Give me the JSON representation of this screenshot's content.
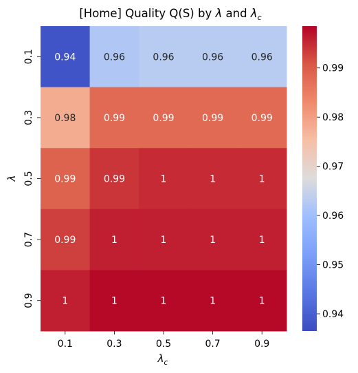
{
  "chart_data": {
    "type": "heatmap",
    "title_main": "[Home] Quality Q(S) by ",
    "title_sym1": "λ",
    "title_and": " and ",
    "title_sym2": "λ",
    "title_sym2_sub": "c",
    "xlabel": "λ",
    "xlabel_sub": "c",
    "ylabel": "λ",
    "x_categories": [
      "0.1",
      "0.3",
      "0.5",
      "0.7",
      "0.9"
    ],
    "y_categories": [
      "0.1",
      "0.3",
      "0.5",
      "0.7",
      "0.9"
    ],
    "values": [
      [
        0.938,
        0.962,
        0.963,
        0.963,
        0.963
      ],
      [
        0.978,
        0.988,
        0.988,
        0.988,
        0.988
      ],
      [
        0.989,
        0.994,
        0.995,
        0.995,
        0.995
      ],
      [
        0.993,
        0.996,
        0.996,
        0.996,
        0.996
      ],
      [
        0.996,
        0.998,
        0.998,
        0.998,
        0.998
      ]
    ],
    "labels": [
      [
        "0.94",
        "0.96",
        "0.96",
        "0.96",
        "0.96"
      ],
      [
        "0.98",
        "0.99",
        "0.99",
        "0.99",
        "0.99"
      ],
      [
        "0.99",
        "0.99",
        "1",
        "1",
        "1"
      ],
      [
        "0.99",
        "1",
        "1",
        "1",
        "1"
      ],
      [
        "1",
        "1",
        "1",
        "1",
        "1"
      ]
    ],
    "vmin": 0.9365,
    "vmax": 0.9985,
    "colormap": "coolwarm",
    "colorbar_ticks": [
      "0.94",
      "0.95",
      "0.96",
      "0.97",
      "0.98",
      "0.99"
    ],
    "colorbar_tick_values": [
      0.94,
      0.95,
      0.96,
      0.97,
      0.98,
      0.99
    ]
  }
}
